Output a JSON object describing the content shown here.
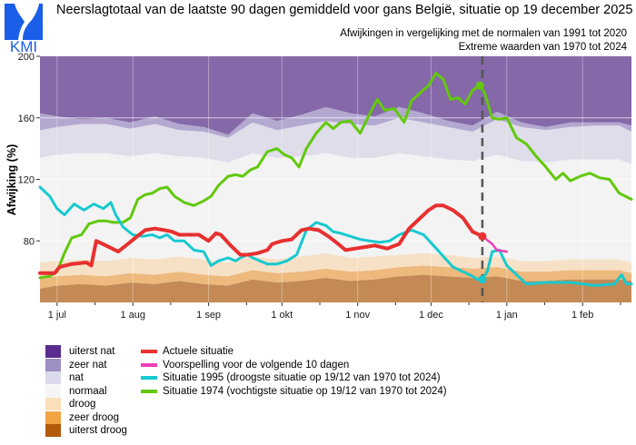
{
  "header": {
    "logo_text": "KMI",
    "title": "Neerslagtotaal van de laatste 90 dagen gemiddeld voor gans België, situatie op 19 december 2025",
    "subtitle_1": "Afwijkingen in vergelijking met de normalen van 1991 tot 2020",
    "subtitle_2": "Extreme waarden van 1970 tot 2024"
  },
  "colors": {
    "uiterst_nat": "#8468a8",
    "zeer_nat": "#b3a8d0",
    "nat": "#dedde9",
    "normaal": "#f3f3f3",
    "droog": "#f6e1c7",
    "zeer_droog": "#edb97d",
    "uiterst_droog": "#c38a56",
    "actueel": "#e83030",
    "voorspelling": "#ee3fb8",
    "jaar_1995": "#17c9cf",
    "jaar_1974": "#62c80c",
    "marker": "#555555",
    "logo_blue": "#1b5ee8"
  },
  "legend": {
    "bands": [
      {
        "label": "uiterst nat",
        "color": "#5b2d8f"
      },
      {
        "label": "zeer nat",
        "color": "#9e8fc3"
      },
      {
        "label": "nat",
        "color": "#dadaea"
      },
      {
        "label": "normaal",
        "color": "#f5f5f5"
      },
      {
        "label": "droog",
        "color": "#fbdfba"
      },
      {
        "label": "zeer droog",
        "color": "#f2a444"
      },
      {
        "label": "uiterst droog",
        "color": "#b35a0a"
      }
    ],
    "lines": [
      {
        "label": "Actuele situatie",
        "color": "#e83030"
      },
      {
        "label": "Voorspelling voor de volgende 10 dagen",
        "color": "#ee3fb8"
      },
      {
        "label": "Situatie 1995 (droogste situatie op 19/12 van 1970 tot 2024)",
        "color": "#17c9cf"
      },
      {
        "label": "Situatie 1974 (vochtigste situatie op 19/12 van 1970 tot 2024)",
        "color": "#62c80c"
      }
    ]
  },
  "chart_data": {
    "type": "area",
    "title": "Neerslagtotaal van de laatste 90 dagen gemiddeld voor gans België, situatie op 19 december 2025",
    "xlabel": "",
    "ylabel": "Afwijking (%)",
    "x_unit": "days since 1 jul 2025",
    "xlim": [
      -7,
      235
    ],
    "ylim": [
      40,
      200
    ],
    "grid": true,
    "x_ticks": [
      {
        "day": 0,
        "label": "1 jul"
      },
      {
        "day": 31,
        "label": "1 aug"
      },
      {
        "day": 62,
        "label": "1 sep"
      },
      {
        "day": 92,
        "label": "1 okt"
      },
      {
        "day": 123,
        "label": "1 nov"
      },
      {
        "day": 153,
        "label": "1 dec"
      },
      {
        "day": 184,
        "label": "1 jan"
      },
      {
        "day": 215,
        "label": "1 feb"
      }
    ],
    "y_ticks": [
      80,
      120,
      160,
      200
    ],
    "current_day": 174,
    "band_x": [
      -7,
      0,
      10,
      20,
      30,
      40,
      50,
      60,
      70,
      80,
      90,
      100,
      110,
      120,
      130,
      140,
      150,
      160,
      170,
      180,
      190,
      200,
      210,
      220,
      230,
      235
    ],
    "band_boundaries": [
      {
        "name": "uiterst droog / zeer droog",
        "values": [
          49,
          51,
          52,
          51,
          53,
          52,
          54,
          52,
          51,
          55,
          53,
          54,
          56,
          54,
          55,
          57,
          58,
          57,
          56,
          57,
          54,
          54,
          55,
          55,
          55,
          54
        ]
      },
      {
        "name": "zeer droog / droog",
        "values": [
          56,
          57,
          58,
          57,
          59,
          58,
          60,
          58,
          57,
          61,
          59,
          60,
          62,
          60,
          61,
          63,
          64,
          63,
          62,
          63,
          60,
          60,
          61,
          61,
          61,
          59
        ]
      },
      {
        "name": "droog / normaal",
        "values": [
          66,
          67,
          68,
          67,
          69,
          68,
          70,
          68,
          66,
          70,
          68,
          70,
          72,
          69,
          70,
          71,
          72,
          71,
          69,
          70,
          67,
          67,
          68,
          68,
          68,
          66
        ]
      },
      {
        "name": "normaal / nat",
        "values": [
          134,
          136,
          137,
          137,
          135,
          137,
          135,
          134,
          131,
          137,
          134,
          135,
          137,
          134,
          134,
          137,
          135,
          133,
          132,
          136,
          132,
          131,
          133,
          133,
          133,
          130
        ]
      },
      {
        "name": "nat / zeer nat",
        "values": [
          152,
          154,
          156,
          156,
          153,
          156,
          152,
          151,
          147,
          157,
          152,
          155,
          158,
          156,
          155,
          160,
          157,
          154,
          151,
          159,
          154,
          152,
          154,
          155,
          155,
          151
        ]
      },
      {
        "name": "zeer nat / uiterst nat",
        "values": [
          163,
          161,
          159,
          160,
          157,
          161,
          156,
          154,
          149,
          163,
          158,
          162,
          167,
          163,
          161,
          167,
          163,
          158,
          155,
          164,
          157,
          154,
          157,
          157,
          157,
          155
        ]
      }
    ],
    "series": [
      {
        "name": "Actuele situatie",
        "x": [
          -7,
          -1,
          1,
          6,
          12,
          14,
          16,
          20,
          25,
          29,
          32,
          36,
          40,
          44,
          47,
          50,
          54,
          58,
          62,
          65,
          67,
          71,
          75,
          78,
          82,
          86,
          88,
          92,
          96,
          100,
          103,
          107,
          111,
          115,
          118,
          122,
          126,
          130,
          135,
          140,
          144,
          148,
          152,
          155,
          158,
          162,
          166,
          170,
          174
        ],
        "values": [
          59,
          59,
          63,
          65,
          66,
          64,
          80,
          77,
          73,
          78,
          82,
          87,
          88,
          87,
          86,
          84,
          84,
          84,
          80,
          85,
          84,
          77,
          71,
          71,
          72,
          74,
          78,
          80,
          81,
          87,
          88,
          87,
          83,
          78,
          74,
          75,
          76,
          77,
          75,
          78,
          88,
          94,
          100,
          103,
          103,
          100,
          95,
          86,
          83
        ]
      },
      {
        "name": "Voorspelling voor de volgende 10 dagen",
        "x": [
          174,
          178,
          180,
          184
        ],
        "values": [
          83,
          78,
          74,
          73
        ]
      },
      {
        "name": "Situatie 1995 (droogste situatie op 19/12 van 1970 tot 2024)",
        "x": [
          -7,
          -3,
          0,
          3,
          7,
          11,
          15,
          19,
          22,
          24,
          27,
          31,
          35,
          39,
          42,
          45,
          48,
          52,
          56,
          60,
          63,
          66,
          70,
          73,
          75,
          78,
          80,
          83,
          86,
          90,
          94,
          98,
          102,
          106,
          110,
          113,
          116,
          120,
          124,
          128,
          132,
          136,
          140,
          145,
          150,
          154,
          158,
          162,
          166,
          170,
          172,
          174,
          176,
          178,
          181,
          184,
          188,
          192,
          200,
          210,
          220,
          228,
          231,
          233,
          235
        ],
        "values": [
          115,
          109,
          101,
          97,
          104,
          100,
          104,
          101,
          105,
          97,
          89,
          84,
          83,
          84,
          82,
          84,
          80,
          80,
          74,
          73,
          64,
          67,
          69,
          67,
          69,
          71,
          69,
          67,
          65,
          65,
          67,
          71,
          87,
          92,
          90,
          86,
          85,
          83,
          81,
          80,
          79,
          80,
          84,
          87,
          84,
          77,
          70,
          63,
          60,
          57,
          55,
          55,
          60,
          73,
          74,
          64,
          58,
          52,
          53,
          53,
          51,
          52,
          58,
          52,
          52
        ]
      },
      {
        "name": "Situatie 1974 (vochtigste situatie op 19/12 van 1970 tot 2024)",
        "x": [
          -7,
          -3,
          0,
          3,
          6,
          10,
          13,
          17,
          20,
          23,
          27,
          30,
          33,
          36,
          39,
          42,
          45,
          48,
          52,
          56,
          60,
          63,
          66,
          70,
          73,
          76,
          79,
          82,
          86,
          90,
          93,
          96,
          99,
          102,
          106,
          110,
          113,
          116,
          120,
          124,
          128,
          131,
          134,
          138,
          142,
          145,
          149,
          152,
          155,
          158,
          161,
          164,
          167,
          170,
          173,
          175,
          178,
          181,
          184,
          188,
          192,
          196,
          200,
          204,
          207,
          210,
          214,
          218,
          222,
          226,
          230,
          235
        ],
        "values": [
          56,
          57,
          60,
          72,
          82,
          84,
          91,
          93,
          93,
          92,
          92,
          95,
          107,
          110,
          111,
          114,
          115,
          109,
          105,
          103,
          106,
          109,
          116,
          122,
          123,
          122,
          126,
          128,
          138,
          140,
          136,
          134,
          128,
          140,
          150,
          157,
          153,
          157,
          158,
          150,
          163,
          172,
          165,
          166,
          157,
          171,
          177,
          181,
          189,
          185,
          172,
          173,
          169,
          178,
          181,
          176,
          160,
          159,
          160,
          147,
          143,
          135,
          128,
          120,
          124,
          119,
          122,
          124,
          121,
          120,
          111,
          107
        ]
      }
    ]
  }
}
